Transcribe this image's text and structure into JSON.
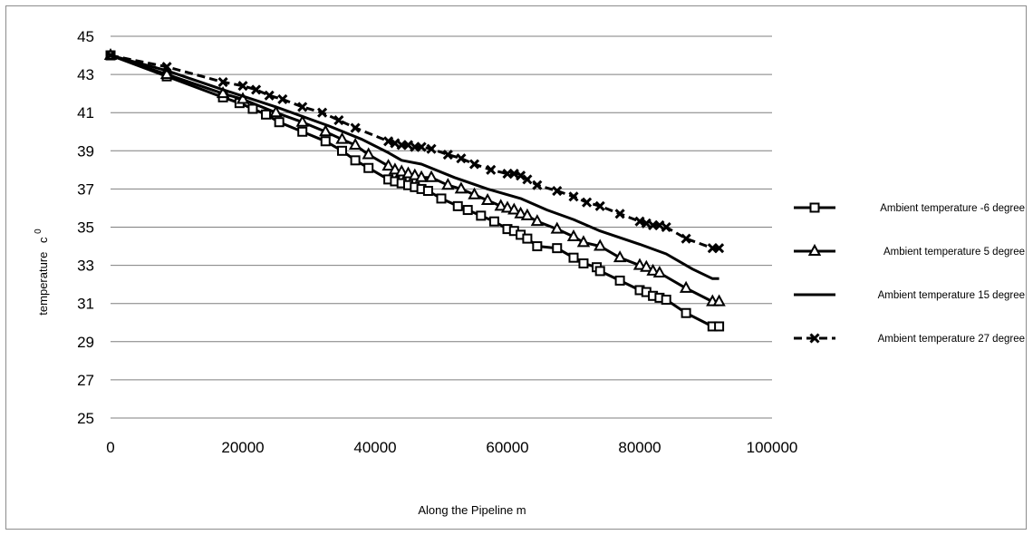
{
  "chart_data": {
    "type": "line",
    "title": "",
    "xlabel": "Along the Pipeline m",
    "ylabel": "temperature",
    "ylabel_unit": "c",
    "ylabel_sup": "0",
    "xlim": [
      0,
      100000
    ],
    "ylim": [
      25,
      45
    ],
    "xticks": [
      "0",
      "20000",
      "40000",
      "60000",
      "80000",
      "100000"
    ],
    "yticks": [
      "25",
      "27",
      "29",
      "31",
      "33",
      "35",
      "37",
      "39",
      "41",
      "43",
      "45"
    ],
    "grid": "horizontal",
    "legend_position": "right",
    "series": [
      {
        "name": "Ambient temperature -6 degree",
        "marker": "square",
        "line": "solid",
        "points": [
          [
            0,
            44.0
          ],
          [
            8500,
            42.9
          ],
          [
            17000,
            41.8
          ],
          [
            19500,
            41.5
          ],
          [
            21500,
            41.2
          ],
          [
            23500,
            40.9
          ],
          [
            25500,
            40.5
          ],
          [
            29000,
            40.0
          ],
          [
            32500,
            39.5
          ],
          [
            35000,
            39.0
          ],
          [
            37000,
            38.5
          ],
          [
            39000,
            38.1
          ],
          [
            42000,
            37.5
          ],
          [
            43000,
            37.4
          ],
          [
            44000,
            37.3
          ],
          [
            45000,
            37.2
          ],
          [
            46000,
            37.1
          ],
          [
            47000,
            37.0
          ],
          [
            48000,
            36.9
          ],
          [
            50000,
            36.5
          ],
          [
            52500,
            36.1
          ],
          [
            54000,
            35.9
          ],
          [
            56000,
            35.6
          ],
          [
            58000,
            35.3
          ],
          [
            60000,
            34.9
          ],
          [
            61000,
            34.8
          ],
          [
            62000,
            34.6
          ],
          [
            63000,
            34.4
          ],
          [
            64500,
            34.0
          ],
          [
            67500,
            33.9
          ],
          [
            70000,
            33.4
          ],
          [
            71500,
            33.1
          ],
          [
            73500,
            32.9
          ],
          [
            74000,
            32.7
          ],
          [
            77000,
            32.2
          ],
          [
            80000,
            31.7
          ],
          [
            81000,
            31.6
          ],
          [
            82000,
            31.4
          ],
          [
            83000,
            31.3
          ],
          [
            84000,
            31.2
          ],
          [
            87000,
            30.5
          ],
          [
            91000,
            29.8
          ],
          [
            92000,
            29.8
          ]
        ]
      },
      {
        "name": "Ambient temperature 5 degree",
        "marker": "triangle",
        "line": "solid",
        "points": [
          [
            0,
            44.0
          ],
          [
            8500,
            43.0
          ],
          [
            17000,
            42.0
          ],
          [
            20000,
            41.7
          ],
          [
            25000,
            41.0
          ],
          [
            29000,
            40.5
          ],
          [
            32500,
            40.0
          ],
          [
            35000,
            39.6
          ],
          [
            37000,
            39.3
          ],
          [
            39000,
            38.8
          ],
          [
            42000,
            38.2
          ],
          [
            43000,
            38.0
          ],
          [
            44000,
            37.9
          ],
          [
            45000,
            37.8
          ],
          [
            46000,
            37.7
          ],
          [
            47000,
            37.6
          ],
          [
            48500,
            37.6
          ],
          [
            51000,
            37.2
          ],
          [
            53000,
            37.0
          ],
          [
            55000,
            36.7
          ],
          [
            57000,
            36.4
          ],
          [
            59000,
            36.1
          ],
          [
            60000,
            36.0
          ],
          [
            61000,
            35.9
          ],
          [
            62000,
            35.7
          ],
          [
            63000,
            35.6
          ],
          [
            64500,
            35.3
          ],
          [
            67500,
            34.9
          ],
          [
            70000,
            34.5
          ],
          [
            71500,
            34.2
          ],
          [
            74000,
            34.0
          ],
          [
            77000,
            33.4
          ],
          [
            80000,
            33.0
          ],
          [
            81000,
            32.9
          ],
          [
            82000,
            32.7
          ],
          [
            83000,
            32.6
          ],
          [
            87000,
            31.8
          ],
          [
            91000,
            31.1
          ],
          [
            92000,
            31.1
          ]
        ]
      },
      {
        "name": "Ambient temperature 15 degree",
        "marker": "none",
        "line": "solid",
        "points": [
          [
            0,
            44.0
          ],
          [
            8500,
            43.2
          ],
          [
            17000,
            42.2
          ],
          [
            25000,
            41.3
          ],
          [
            33000,
            40.3
          ],
          [
            38000,
            39.6
          ],
          [
            42000,
            38.9
          ],
          [
            44000,
            38.5
          ],
          [
            47000,
            38.3
          ],
          [
            52000,
            37.6
          ],
          [
            57000,
            37.0
          ],
          [
            62000,
            36.5
          ],
          [
            66000,
            35.9
          ],
          [
            70000,
            35.4
          ],
          [
            74000,
            34.8
          ],
          [
            80000,
            34.1
          ],
          [
            84000,
            33.6
          ],
          [
            88000,
            32.8
          ],
          [
            91000,
            32.3
          ],
          [
            92000,
            32.3
          ]
        ]
      },
      {
        "name": "Ambient temperature 27 degree",
        "marker": "x",
        "line": "dashed",
        "points": [
          [
            0,
            44.0
          ],
          [
            8500,
            43.4
          ],
          [
            17000,
            42.6
          ],
          [
            20000,
            42.4
          ],
          [
            22000,
            42.2
          ],
          [
            24000,
            41.9
          ],
          [
            26000,
            41.7
          ],
          [
            29000,
            41.3
          ],
          [
            32000,
            41.0
          ],
          [
            34500,
            40.6
          ],
          [
            37000,
            40.2
          ],
          [
            42000,
            39.5
          ],
          [
            43000,
            39.4
          ],
          [
            44000,
            39.3
          ],
          [
            45000,
            39.3
          ],
          [
            46000,
            39.2
          ],
          [
            47000,
            39.2
          ],
          [
            48500,
            39.1
          ],
          [
            51000,
            38.8
          ],
          [
            53000,
            38.6
          ],
          [
            55000,
            38.3
          ],
          [
            57500,
            38.0
          ],
          [
            60000,
            37.8
          ],
          [
            61000,
            37.8
          ],
          [
            62000,
            37.7
          ],
          [
            63000,
            37.5
          ],
          [
            64500,
            37.2
          ],
          [
            67500,
            36.9
          ],
          [
            70000,
            36.6
          ],
          [
            72000,
            36.3
          ],
          [
            74000,
            36.1
          ],
          [
            77000,
            35.7
          ],
          [
            80000,
            35.3
          ],
          [
            81000,
            35.2
          ],
          [
            82000,
            35.1
          ],
          [
            83000,
            35.1
          ],
          [
            84000,
            35.0
          ],
          [
            87000,
            34.4
          ],
          [
            91000,
            33.9
          ],
          [
            92000,
            33.9
          ]
        ]
      }
    ]
  }
}
